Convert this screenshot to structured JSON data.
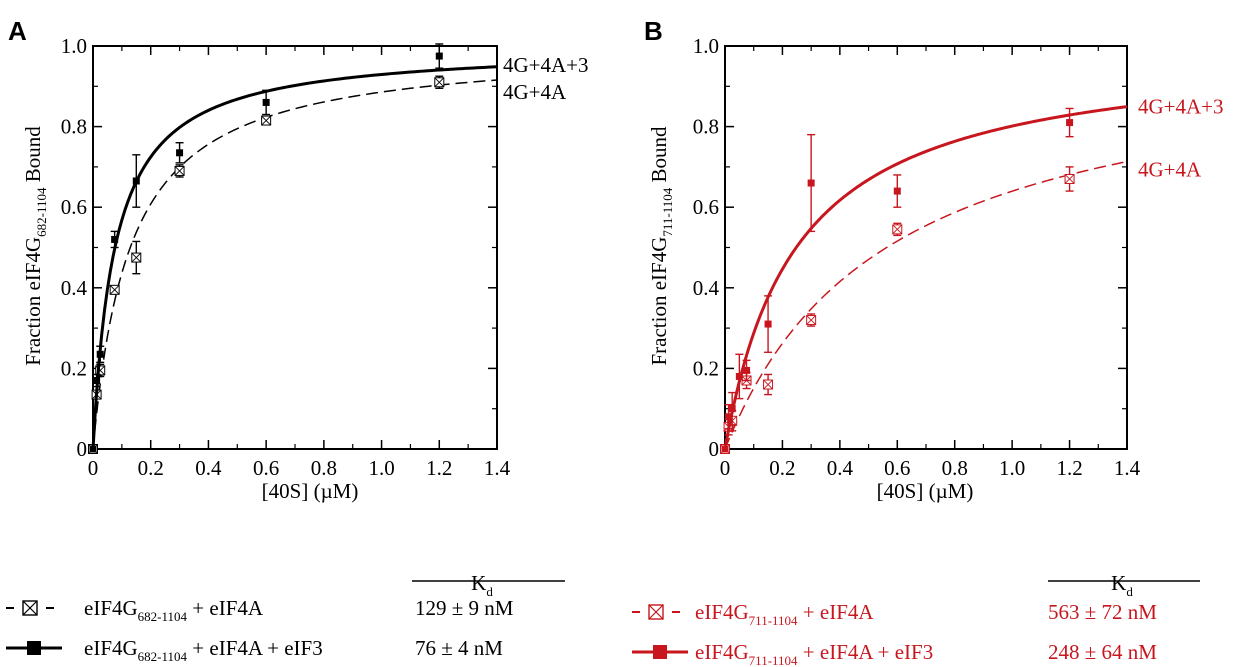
{
  "panels": [
    {
      "letter": "A",
      "ylabel_main": "Fraction eIF4G",
      "ylabel_sub": "682-1104",
      "ylabel_tail": " Bound",
      "kd_header": "K",
      "kd_header_sub": "d",
      "legend": [
        {
          "pre": "eIF4G",
          "sub": "682-1104",
          "post": " + eIF4A",
          "kd": "129 ± 9 nM"
        },
        {
          "pre": "eIF4G",
          "sub": "682-1104",
          "post": " + eIF4A + eIF3",
          "kd": "76 ± 4 nM"
        }
      ]
    },
    {
      "letter": "B",
      "ylabel_main": "Fraction eIF4G",
      "ylabel_sub": "711-1104",
      "ylabel_tail": " Bound",
      "kd_header": "K",
      "kd_header_sub": "d",
      "legend": [
        {
          "pre": "eIF4G",
          "sub": "711-1104",
          "post": " + eIF4A",
          "kd": "563 ± 72 nM"
        },
        {
          "pre": "eIF4G",
          "sub": "711-1104",
          "post": " + eIF4A + eIF3",
          "kd": "248 ± 64 nM"
        }
      ]
    }
  ],
  "chart_data": [
    {
      "type": "scatter",
      "panel": "A",
      "xlabel": "[40S] (µM)",
      "ylabel": "Fraction eIF4G682-1104 Bound",
      "xlim": [
        0,
        1.4
      ],
      "ylim": [
        0,
        1.0
      ],
      "xticks": [
        0,
        0.2,
        0.4,
        0.6,
        0.8,
        1.0,
        1.2,
        1.4
      ],
      "xtick_labels": [
        "0",
        "0.2",
        "0.4",
        "0.6",
        "0.8",
        "1.0",
        "1.2",
        "1.4"
      ],
      "yticks": [
        0,
        0.2,
        0.4,
        0.6,
        0.8,
        1.0
      ],
      "ytick_labels": [
        "0",
        "0.2",
        "0.4",
        "0.6",
        "0.8",
        "1.0"
      ],
      "color": "#000000",
      "series": [
        {
          "curve_label": "4G+4A",
          "marker": "boxed-x",
          "line": "dashed",
          "kd_uM": 0.129,
          "x": [
            0.0,
            0.0125,
            0.025,
            0.075,
            0.15,
            0.3,
            0.6,
            1.2
          ],
          "y": [
            0.0,
            0.135,
            0.195,
            0.395,
            0.475,
            0.69,
            0.815,
            0.91
          ],
          "err": [
            0.0,
            0.01,
            0.015,
            0.01,
            0.04,
            0.015,
            0.01,
            0.015
          ]
        },
        {
          "curve_label": "4G+4A+3",
          "marker": "filled-square",
          "line": "solid",
          "kd_uM": 0.076,
          "x": [
            0.0,
            0.0125,
            0.025,
            0.075,
            0.15,
            0.3,
            0.6,
            1.2
          ],
          "y": [
            0.0,
            0.17,
            0.235,
            0.52,
            0.665,
            0.735,
            0.86,
            0.975
          ],
          "err": [
            0.0,
            0.015,
            0.02,
            0.02,
            0.065,
            0.025,
            0.03,
            0.03
          ]
        }
      ]
    },
    {
      "type": "scatter",
      "panel": "B",
      "xlabel": "[40S] (µM)",
      "ylabel": "Fraction eIF4G711-1104 Bound",
      "xlim": [
        0,
        1.4
      ],
      "ylim": [
        0,
        1.0
      ],
      "xticks": [
        0,
        0.2,
        0.4,
        0.6,
        0.8,
        1.0,
        1.2,
        1.4
      ],
      "xtick_labels": [
        "0",
        "0.2",
        "0.4",
        "0.6",
        "0.8",
        "1.0",
        "1.2",
        "1.4"
      ],
      "yticks": [
        0,
        0.2,
        0.4,
        0.6,
        0.8,
        1.0
      ],
      "ytick_labels": [
        "0",
        "0.2",
        "0.4",
        "0.6",
        "0.8",
        "1.0"
      ],
      "color": "#c8161e",
      "series": [
        {
          "curve_label": "4G+4A",
          "marker": "boxed-x",
          "line": "dashed",
          "kd_uM": 0.563,
          "x": [
            0.0,
            0.0125,
            0.025,
            0.075,
            0.15,
            0.3,
            0.6,
            1.2
          ],
          "y": [
            0.0,
            0.055,
            0.07,
            0.17,
            0.16,
            0.32,
            0.545,
            0.67
          ],
          "err": [
            0.0,
            0.02,
            0.025,
            0.02,
            0.025,
            0.015,
            0.015,
            0.03
          ]
        },
        {
          "curve_label": "4G+4A+3",
          "marker": "filled-square",
          "line": "solid",
          "kd_uM": 0.248,
          "x": [
            0.0,
            0.0125,
            0.025,
            0.05,
            0.075,
            0.15,
            0.3,
            0.6,
            1.2
          ],
          "y": [
            0.0,
            0.08,
            0.1,
            0.18,
            0.195,
            0.31,
            0.66,
            0.64,
            0.81
          ],
          "err": [
            0.0,
            0.03,
            0.04,
            0.055,
            0.025,
            0.07,
            0.12,
            0.04,
            0.035
          ]
        }
      ]
    }
  ]
}
